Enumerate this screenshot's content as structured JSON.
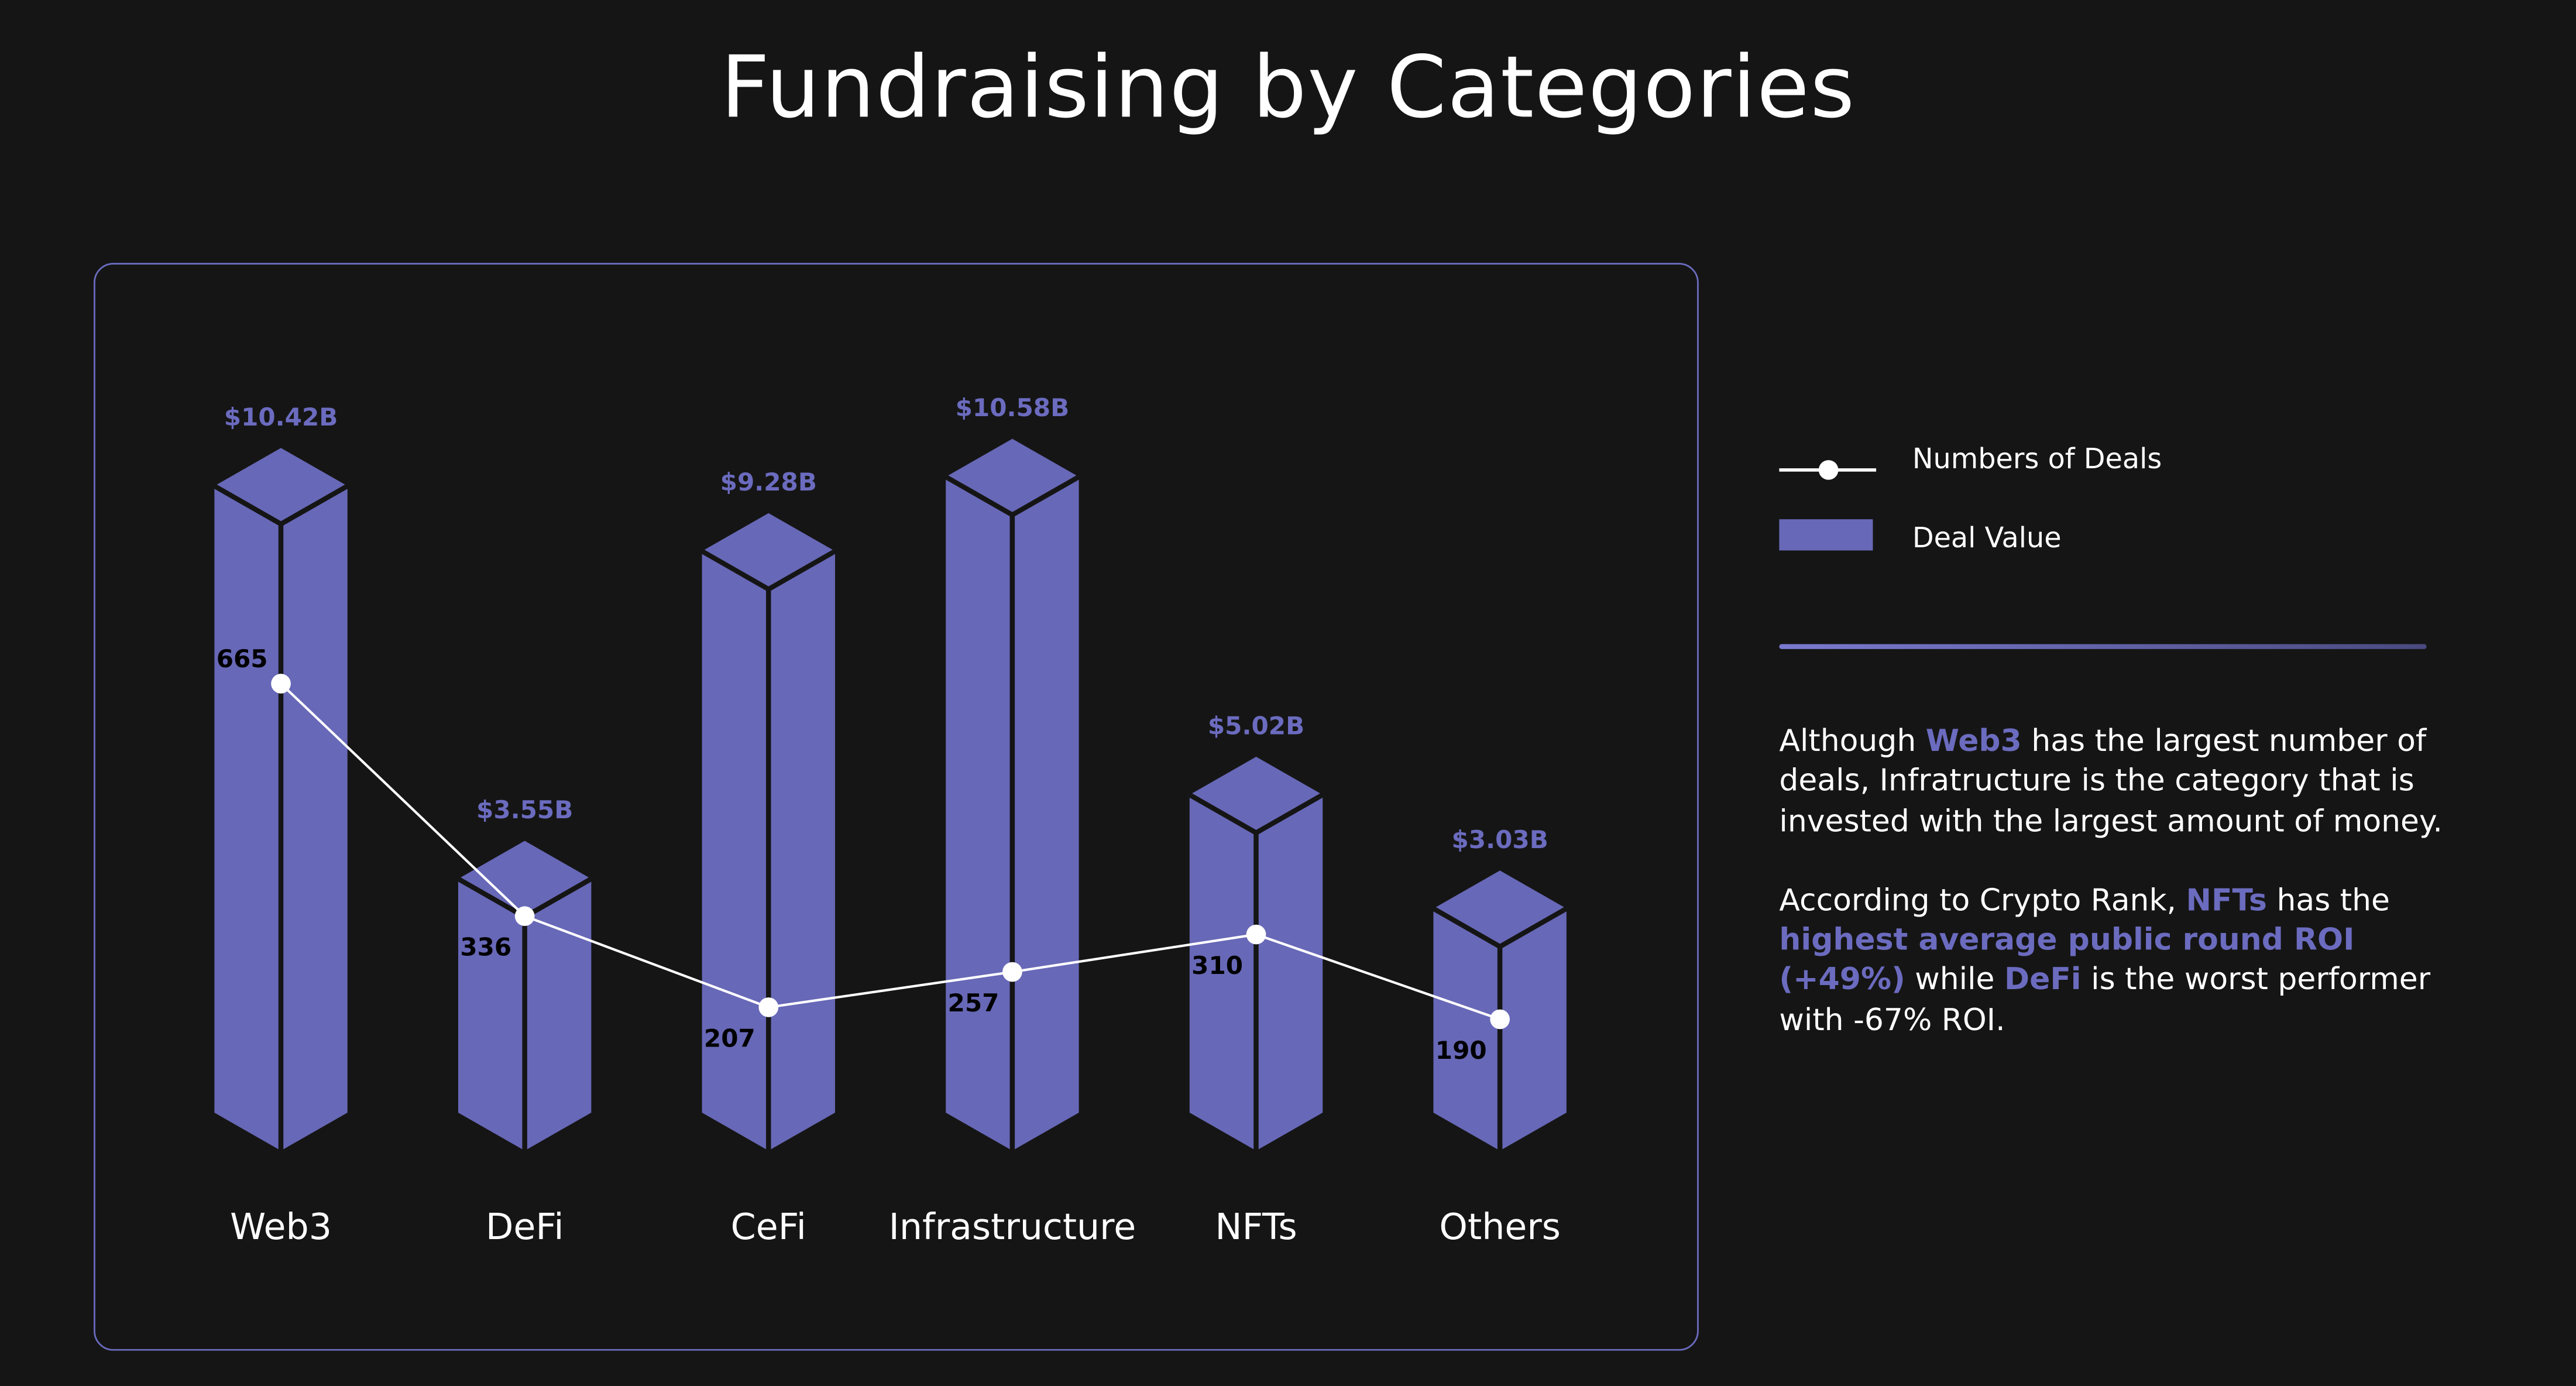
{
  "chart_data": {
    "type": "bar",
    "title": "Fundraising by Categories",
    "categories": [
      "Web3",
      "DeFi",
      "CeFi",
      "Infrastructure",
      "NFTs",
      "Others"
    ],
    "series": [
      {
        "name": "Deal Value",
        "unit": "USD billions",
        "values": [
          10.42,
          3.55,
          9.28,
          10.58,
          5.02,
          3.03
        ],
        "labels": [
          "$10.42B",
          "$3.55B",
          "$9.28B",
          "$10.58B",
          "$5.02B",
          "$3.03B"
        ]
      },
      {
        "name": "Numbers of Deals",
        "type": "line",
        "values": [
          665,
          336,
          207,
          257,
          310,
          190
        ]
      }
    ],
    "legend": [
      "Numbers of Deals",
      "Deal Value"
    ],
    "legend_position": "right",
    "grid": false
  },
  "colors": {
    "bar": "#6868b8",
    "accent": "#6b6bbf",
    "line": "#ffffff",
    "background": "#151515"
  },
  "description": {
    "p1": {
      "t1": "Although ",
      "h1": "Web3",
      "t2": " has the largest number of deals, Infratructure is the category that is invested with the largest amount of money."
    },
    "p2": {
      "t1": "According to Crypto Rank, ",
      "h1": "NFTs",
      "t2": " has the ",
      "h2": "highest average public round ROI (+49%)",
      "t3": " while ",
      "h3": "DeFi",
      "t4": " is the worst performer with -67% ROI."
    }
  }
}
